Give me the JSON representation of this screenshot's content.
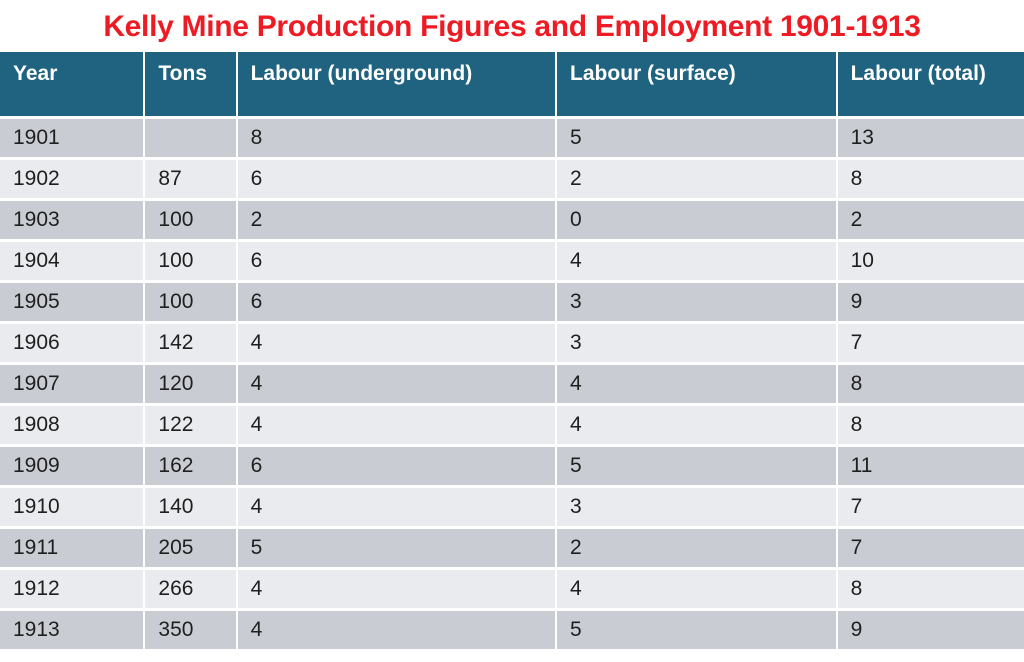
{
  "title": "Kelly Mine Production Figures and Employment 1901-1913",
  "colors": {
    "title_red": "#ED1C24",
    "header_bg": "#1F6380",
    "header_text": "#FFFFFF",
    "row_dark": "#C9CDD3",
    "row_light": "#E9EBEE",
    "body_text": "#1F1F1F",
    "grid_white": "#FFFFFF",
    "page_bg": "#FFFFFF"
  },
  "chart_data": {
    "type": "table",
    "title": "Kelly Mine Production Figures and Employment 1901-1913",
    "columns": [
      "Year",
      "Tons",
      "Labour (underground)",
      "Labour (surface)",
      "Labour (total)"
    ],
    "rows": [
      [
        "1901",
        "",
        "8",
        "5",
        "13"
      ],
      [
        "1902",
        "87",
        "6",
        "2",
        "8"
      ],
      [
        "1903",
        "100",
        "2",
        "0",
        "2"
      ],
      [
        "1904",
        "100",
        "6",
        "4",
        "10"
      ],
      [
        "1905",
        "100",
        "6",
        "3",
        "9"
      ],
      [
        "1906",
        "142",
        "4",
        "3",
        "7"
      ],
      [
        "1907",
        "120",
        "4",
        "4",
        "8"
      ],
      [
        "1908",
        "122",
        "4",
        "4",
        "8"
      ],
      [
        "1909",
        "162",
        "6",
        "5",
        "11"
      ],
      [
        "1910",
        "140",
        "4",
        "3",
        "7"
      ],
      [
        "1911",
        "205",
        "5",
        "2",
        "7"
      ],
      [
        "1912",
        "266",
        "4",
        "4",
        "8"
      ],
      [
        "1913",
        "350",
        "4",
        "5",
        "9"
      ]
    ]
  }
}
